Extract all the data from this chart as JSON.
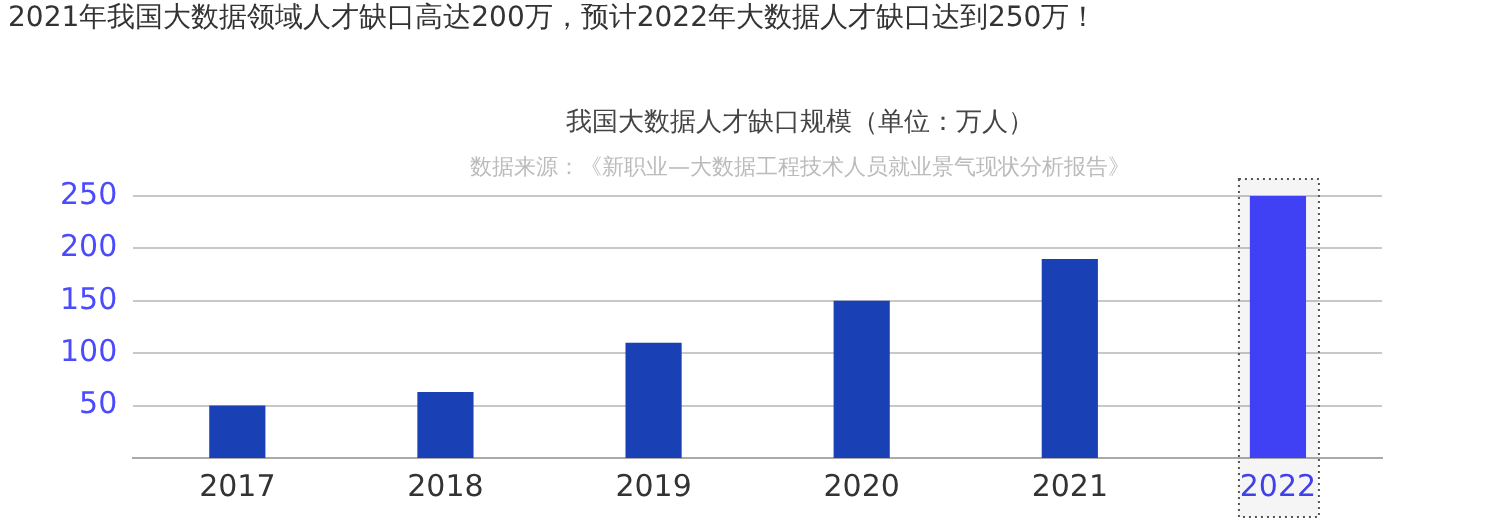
{
  "chart_data": {
    "type": "bar",
    "title": "我国大数据人才缺口规模（单位：万人）",
    "subtitle": "2021年我国大数据领域人才缺口高达200万，预计2022年大数据人才缺口达到250万！",
    "annotations": [
      "数据来源：《新职业—大数据工程技术人员就业景气现状分析报告》"
    ],
    "categories": [
      "2017",
      "2018",
      "2019",
      "2020",
      "2021",
      "2022"
    ],
    "values": [
      50,
      63,
      110,
      150,
      190,
      250
    ],
    "colors": [
      "#1941b5",
      "#1941b5",
      "#1941b5",
      "#1941b5",
      "#1941b5",
      "#4040f5"
    ],
    "bands": [
      {
        "axis": "x",
        "from": "2022",
        "to": "2022",
        "color": "#555555"
      }
    ],
    "ylim": [
      0,
      250
    ],
    "yticks": [
      50,
      100,
      150,
      200,
      250
    ],
    "grid": "y",
    "legend": false
  }
}
